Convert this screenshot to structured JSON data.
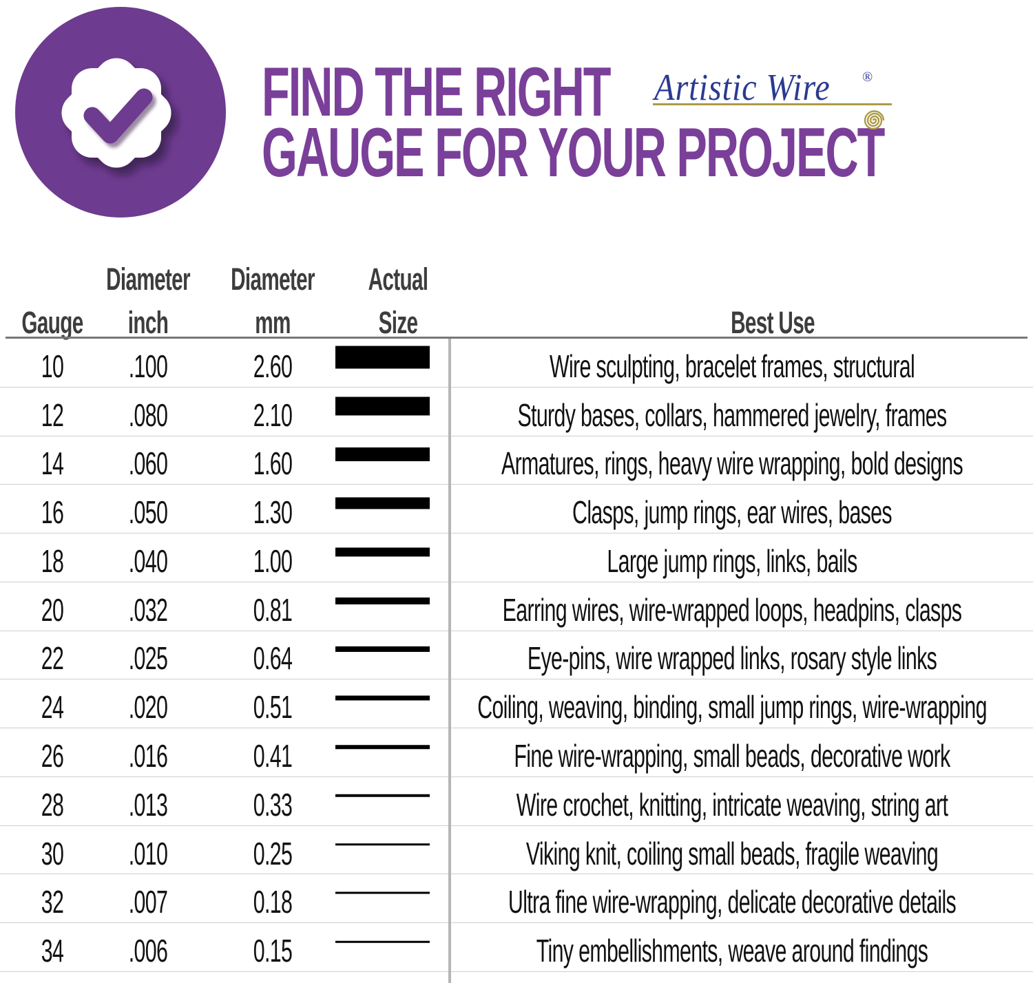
{
  "header": {
    "title_line1": "FIND THE RIGHT",
    "title_line2": "GAUGE FOR YOUR PROJECT",
    "brand": "Artistic Wire",
    "brand_reg_mark": "®",
    "emblem_icon": "check-badge-icon",
    "spiral_icon": "wire-spiral-icon",
    "colors": {
      "emblem_purple": "#6d3b8f",
      "title_purple": "#7a3f99",
      "brand_blue": "#2b3a91",
      "brand_gold": "#ad9b45"
    }
  },
  "table": {
    "column_headers": {
      "gauge_line2": "Gauge",
      "inch_line1": "Diameter",
      "inch_line2": "inch",
      "mm_line1": "Diameter",
      "mm_line2": "mm",
      "size_line1": "Actual",
      "size_line2": "Size",
      "best_use_line2": "Best Use"
    },
    "rows": [
      {
        "gauge": "10",
        "inch": ".100",
        "mm": "2.60",
        "bar_thickness_px": 33,
        "best_use": "Wire sculpting, bracelet frames, structural"
      },
      {
        "gauge": "12",
        "inch": ".080",
        "mm": "2.10",
        "bar_thickness_px": 27,
        "best_use": "Sturdy bases, collars, hammered jewelry, frames"
      },
      {
        "gauge": "14",
        "inch": ".060",
        "mm": "1.60",
        "bar_thickness_px": 20,
        "best_use": "Armatures, rings, heavy wire wrapping, bold designs"
      },
      {
        "gauge": "16",
        "inch": ".050",
        "mm": "1.30",
        "bar_thickness_px": 17,
        "best_use": "Clasps, jump rings, ear wires, bases"
      },
      {
        "gauge": "18",
        "inch": ".040",
        "mm": "1.00",
        "bar_thickness_px": 13,
        "best_use": "Large jump rings, links, bails"
      },
      {
        "gauge": "20",
        "inch": ".032",
        "mm": "0.81",
        "bar_thickness_px": 10,
        "best_use": "Earring wires, wire-wrapped loops, headpins, clasps"
      },
      {
        "gauge": "22",
        "inch": ".025",
        "mm": "0.64",
        "bar_thickness_px": 8,
        "best_use": "Eye-pins, wire wrapped links, rosary style links"
      },
      {
        "gauge": "24",
        "inch": ".020",
        "mm": "0.51",
        "bar_thickness_px": 7,
        "best_use": "Coiling, weaving, binding, small jump rings, wire-wrapping"
      },
      {
        "gauge": "26",
        "inch": ".016",
        "mm": "0.41",
        "bar_thickness_px": 5.5,
        "best_use": "Fine wire-wrapping, small beads, decorative work"
      },
      {
        "gauge": "28",
        "inch": ".013",
        "mm": "0.33",
        "bar_thickness_px": 4.5,
        "best_use": "Wire crochet, knitting, intricate weaving, string art"
      },
      {
        "gauge": "30",
        "inch": ".010",
        "mm": "0.25",
        "bar_thickness_px": 3.5,
        "best_use": "Viking knit, coiling small beads, fragile weaving"
      },
      {
        "gauge": "32",
        "inch": ".007",
        "mm": "0.18",
        "bar_thickness_px": 3,
        "best_use": "Ultra fine wire-wrapping, delicate decorative details"
      },
      {
        "gauge": "34",
        "inch": ".006",
        "mm": "0.15",
        "bar_thickness_px": 2.5,
        "best_use": "Tiny embellishments, weave around findings"
      }
    ]
  }
}
